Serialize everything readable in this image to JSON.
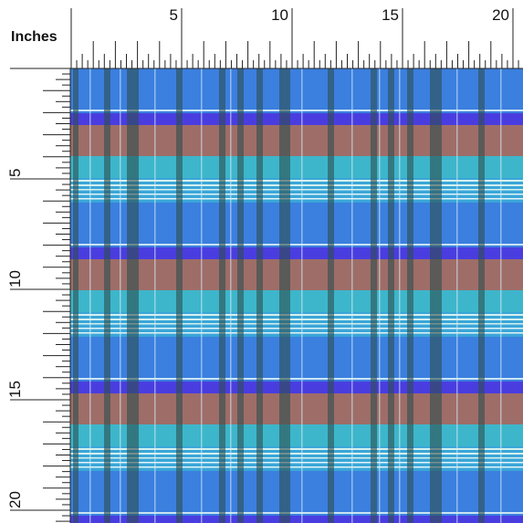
{
  "ruler_label": "Inches",
  "top_ruler": {
    "labels": [
      5,
      10,
      15,
      20
    ]
  },
  "left_ruler": {
    "labels": [
      5,
      10,
      15,
      20
    ]
  }
}
